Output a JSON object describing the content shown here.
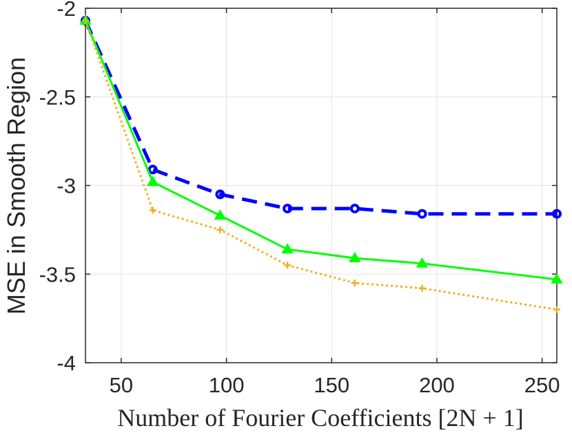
{
  "chart_data": {
    "type": "line",
    "xlabel": "Number of Fourier Coefficients [2N + 1]",
    "ylabel": "MSE in Smooth Region",
    "xlim": [
      33,
      257
    ],
    "ylim": [
      -4,
      -2
    ],
    "xticks": [
      50,
      100,
      150,
      200,
      250
    ],
    "yticks": [
      -4,
      -3.5,
      -3,
      -2.5,
      -2
    ],
    "xtick_labels": [
      "50",
      "100",
      "150",
      "200",
      "250"
    ],
    "ytick_labels": [
      "-4",
      "-3.5",
      "-3",
      "-2.5",
      "-2"
    ],
    "grid": true,
    "x": [
      33,
      65,
      97,
      129,
      161,
      193,
      257
    ],
    "series": [
      {
        "values": [
          -2.07,
          -2.91,
          -3.05,
          -3.13,
          -3.13,
          -3.16,
          -3.16
        ],
        "color": "#0000ff",
        "line": "dashed",
        "marker": "circle"
      },
      {
        "values": [
          -2.07,
          -2.98,
          -3.17,
          -3.36,
          -3.41,
          -3.44,
          -3.53
        ],
        "color": "#00ff00",
        "line": "solid",
        "marker": "triangle"
      },
      {
        "values": [
          -2.07,
          -3.14,
          -3.25,
          -3.45,
          -3.55,
          -3.58,
          -3.7
        ],
        "color": "#edb120",
        "line": "dotted",
        "marker": "plus"
      }
    ]
  }
}
